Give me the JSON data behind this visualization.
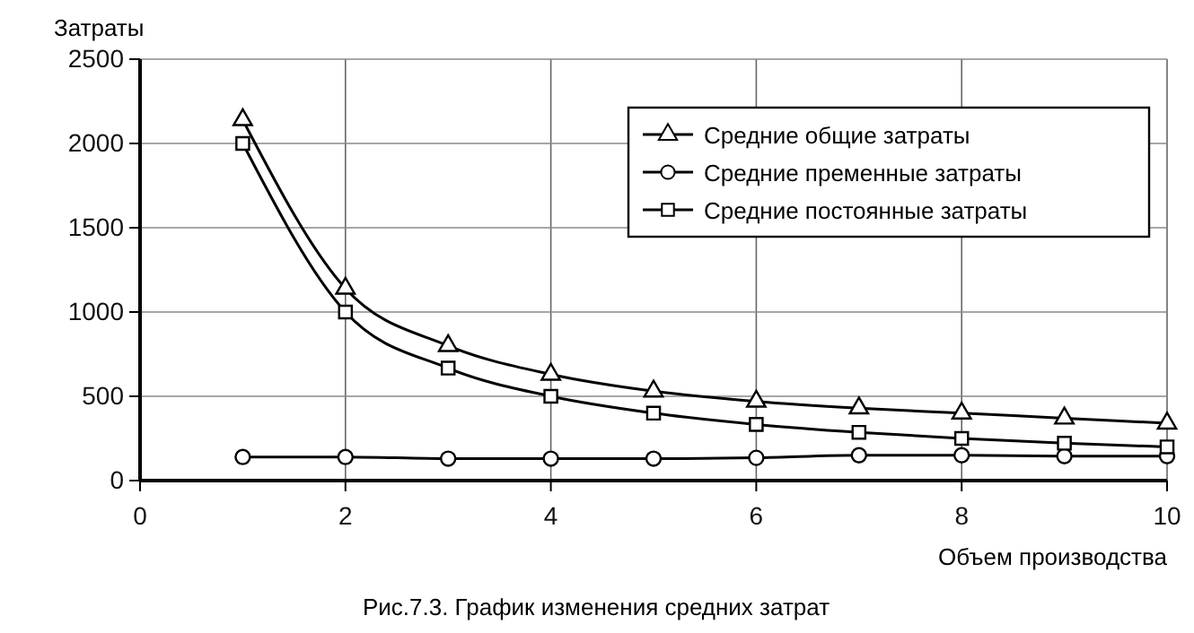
{
  "chart_data": {
    "type": "line",
    "xlabel": "Объем производства",
    "ylabel": "Затраты",
    "annotations": [
      "Рис.7.3. График изменения средних затрат"
    ],
    "x": [
      1,
      2,
      3,
      4,
      5,
      6,
      7,
      8,
      9,
      10
    ],
    "series": [
      {
        "name": "Средние общие затраты",
        "color": "#000000",
        "marker": "triangle",
        "values": [
          2140,
          1140,
          800,
          630,
          530,
          470,
          430,
          400,
          370,
          340
        ]
      },
      {
        "name": "Средние пременные затраты",
        "color": "#000000",
        "marker": "circle",
        "values": [
          140,
          140,
          130,
          130,
          130,
          135,
          150,
          150,
          145,
          145
        ]
      },
      {
        "name": "Средние постоянные затраты",
        "color": "#000000",
        "marker": "square",
        "values": [
          2000,
          1000,
          667,
          500,
          400,
          333,
          286,
          250,
          222,
          200
        ]
      }
    ],
    "xlim": [
      0,
      10
    ],
    "xticks": [
      0,
      2,
      4,
      6,
      8,
      10
    ],
    "ylim": [
      0,
      2500
    ],
    "yticks": [
      0,
      500,
      1000,
      1500,
      2000,
      2500
    ],
    "grid": true,
    "legend": "top right"
  }
}
